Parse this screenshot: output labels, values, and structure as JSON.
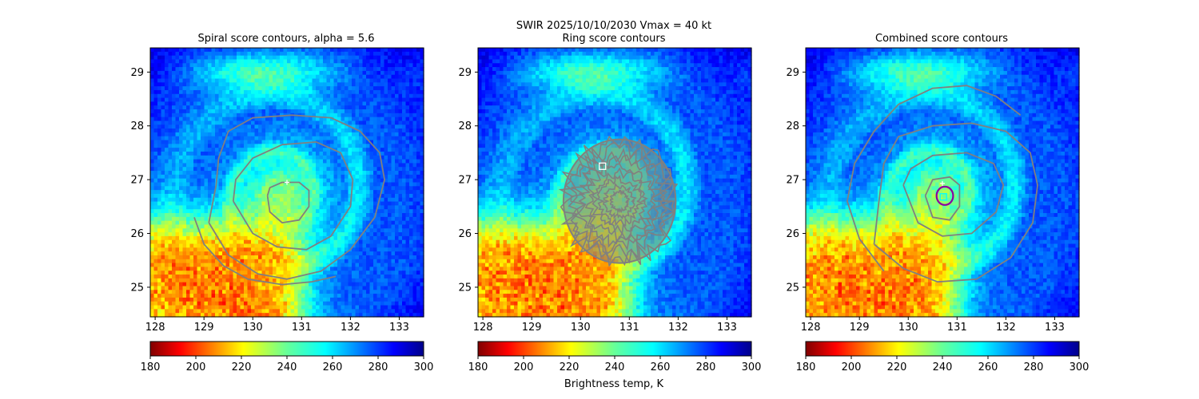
{
  "figure": {
    "suptitle": "SWIR  2025/10/10/2030    Vmax = 40 kt",
    "colorbar_label": "Brightness temp, K"
  },
  "chart_data": [
    {
      "type": "heatmap",
      "panel": "spiral",
      "title": "Spiral score contours, alpha =  5.6",
      "xlim": [
        127.9,
        133.5
      ],
      "ylim": [
        24.45,
        29.45
      ],
      "xticks": [
        128,
        129,
        130,
        131,
        132,
        133
      ],
      "yticks": [
        25,
        26,
        27,
        28,
        29
      ],
      "colorbar": {
        "min": 180,
        "max": 300,
        "ticks": [
          180,
          200,
          220,
          240,
          260,
          280,
          300
        ],
        "colormap": "jet_r"
      },
      "storm_center": {
        "lon": 130.6,
        "lat": 26.7
      },
      "overlays": {
        "contour_color": "#808080",
        "contours": [
          {
            "name": "outer",
            "points": [
              [
                129.1,
                26.2
              ],
              [
                129.5,
                25.6
              ],
              [
                130.1,
                25.25
              ],
              [
                130.7,
                25.15
              ],
              [
                131.4,
                25.3
              ],
              [
                132.0,
                25.7
              ],
              [
                132.5,
                26.3
              ],
              [
                132.7,
                27.0
              ],
              [
                132.6,
                27.5
              ],
              [
                132.2,
                27.9
              ],
              [
                131.6,
                28.15
              ],
              [
                130.8,
                28.2
              ],
              [
                130.0,
                28.15
              ],
              [
                129.5,
                27.9
              ],
              [
                129.3,
                27.4
              ],
              [
                129.25,
                26.9
              ],
              [
                129.1,
                26.2
              ]
            ]
          },
          {
            "name": "middle",
            "points": [
              [
                129.6,
                26.6
              ],
              [
                130.0,
                26.0
              ],
              [
                130.5,
                25.75
              ],
              [
                131.1,
                25.7
              ],
              [
                131.6,
                25.95
              ],
              [
                132.0,
                26.5
              ],
              [
                132.05,
                27.0
              ],
              [
                131.8,
                27.5
              ],
              [
                131.3,
                27.7
              ],
              [
                130.6,
                27.65
              ],
              [
                130.0,
                27.4
              ],
              [
                129.65,
                27.0
              ],
              [
                129.6,
                26.6
              ]
            ]
          },
          {
            "name": "inner",
            "points": [
              [
                130.3,
                26.7
              ],
              [
                130.35,
                26.4
              ],
              [
                130.6,
                26.2
              ],
              [
                130.95,
                26.25
              ],
              [
                131.15,
                26.5
              ],
              [
                131.15,
                26.8
              ],
              [
                130.95,
                26.95
              ],
              [
                130.6,
                26.95
              ],
              [
                130.35,
                26.85
              ],
              [
                130.3,
                26.7
              ]
            ]
          },
          {
            "name": "tail",
            "points": [
              [
                128.8,
                26.3
              ],
              [
                129.0,
                25.8
              ],
              [
                129.4,
                25.4
              ],
              [
                129.9,
                25.15
              ],
              [
                130.6,
                25.05
              ],
              [
                131.2,
                25.1
              ],
              [
                131.7,
                25.2
              ]
            ]
          }
        ],
        "markers": [
          {
            "lon": 130.7,
            "lat": 26.95,
            "symbol": "+",
            "color": "#ffffff"
          }
        ]
      }
    },
    {
      "type": "heatmap",
      "panel": "ring",
      "title": "Ring score contours",
      "xlim": [
        127.9,
        133.5
      ],
      "ylim": [
        24.45,
        29.45
      ],
      "xticks": [
        128,
        129,
        130,
        131,
        132,
        133
      ],
      "yticks": [
        25,
        26,
        27,
        28,
        29
      ],
      "colorbar": {
        "min": 180,
        "max": 300,
        "ticks": [
          180,
          200,
          220,
          240,
          260,
          280,
          300
        ],
        "colormap": "jet_r"
      },
      "storm_center": {
        "lon": 130.6,
        "lat": 26.7
      },
      "overlays": {
        "contour_color": "#808080",
        "ring_region": {
          "lon": 130.8,
          "lat": 26.6,
          "radius_deg": 1.15
        },
        "markers": [
          {
            "lon": 130.45,
            "lat": 27.25,
            "symbol": "square",
            "color": "#ffffff"
          }
        ]
      }
    },
    {
      "type": "heatmap",
      "panel": "combined",
      "title": "Combined score contours",
      "xlim": [
        127.9,
        133.5
      ],
      "ylim": [
        24.45,
        29.45
      ],
      "xticks": [
        128,
        129,
        130,
        131,
        132,
        133
      ],
      "yticks": [
        25,
        26,
        27,
        28,
        29
      ],
      "colorbar": {
        "min": 180,
        "max": 300,
        "ticks": [
          180,
          200,
          220,
          240,
          260,
          280,
          300
        ],
        "colormap": "jet_r"
      },
      "storm_center": {
        "lon": 130.6,
        "lat": 26.7
      },
      "overlays": {
        "contour_color": "#808080",
        "contours": [
          {
            "name": "outer",
            "points": [
              [
                129.5,
                25.3
              ],
              [
                129.0,
                25.9
              ],
              [
                128.75,
                26.6
              ],
              [
                128.9,
                27.3
              ],
              [
                129.3,
                27.9
              ],
              [
                129.8,
                28.4
              ],
              [
                130.5,
                28.7
              ],
              [
                131.2,
                28.75
              ],
              [
                131.8,
                28.55
              ],
              [
                132.3,
                28.2
              ]
            ]
          },
          {
            "name": "second",
            "points": [
              [
                129.3,
                25.8
              ],
              [
                129.9,
                25.35
              ],
              [
                130.6,
                25.1
              ],
              [
                131.4,
                25.15
              ],
              [
                132.1,
                25.55
              ],
              [
                132.55,
                26.2
              ],
              [
                132.65,
                26.9
              ],
              [
                132.5,
                27.5
              ],
              [
                132.0,
                27.9
              ],
              [
                131.3,
                28.05
              ],
              [
                130.5,
                28.0
              ],
              [
                129.8,
                27.8
              ],
              [
                129.5,
                27.3
              ],
              [
                129.4,
                26.6
              ],
              [
                129.3,
                25.8
              ]
            ]
          },
          {
            "name": "third",
            "points": [
              [
                129.9,
                26.9
              ],
              [
                130.2,
                26.2
              ],
              [
                130.7,
                25.95
              ],
              [
                131.3,
                26.0
              ],
              [
                131.8,
                26.4
              ],
              [
                131.95,
                26.9
              ],
              [
                131.75,
                27.3
              ],
              [
                131.2,
                27.5
              ],
              [
                130.5,
                27.45
              ],
              [
                130.05,
                27.2
              ],
              [
                129.9,
                26.9
              ]
            ]
          },
          {
            "name": "fourth",
            "points": [
              [
                130.35,
                26.7
              ],
              [
                130.5,
                26.3
              ],
              [
                130.85,
                26.25
              ],
              [
                131.05,
                26.5
              ],
              [
                131.05,
                26.9
              ],
              [
                130.85,
                27.05
              ],
              [
                130.5,
                27.0
              ],
              [
                130.35,
                26.7
              ]
            ]
          }
        ],
        "rings": [
          {
            "lon": 130.75,
            "lat": 26.7,
            "radius_deg": 0.17,
            "color": "#8B00A0"
          }
        ],
        "markers": [
          {
            "lon": 130.72,
            "lat": 26.68,
            "symbol": "square",
            "color": "#00FFFF"
          },
          {
            "lon": 130.7,
            "lat": 26.93,
            "symbol": "+",
            "color": "#ffffff"
          }
        ]
      }
    }
  ]
}
